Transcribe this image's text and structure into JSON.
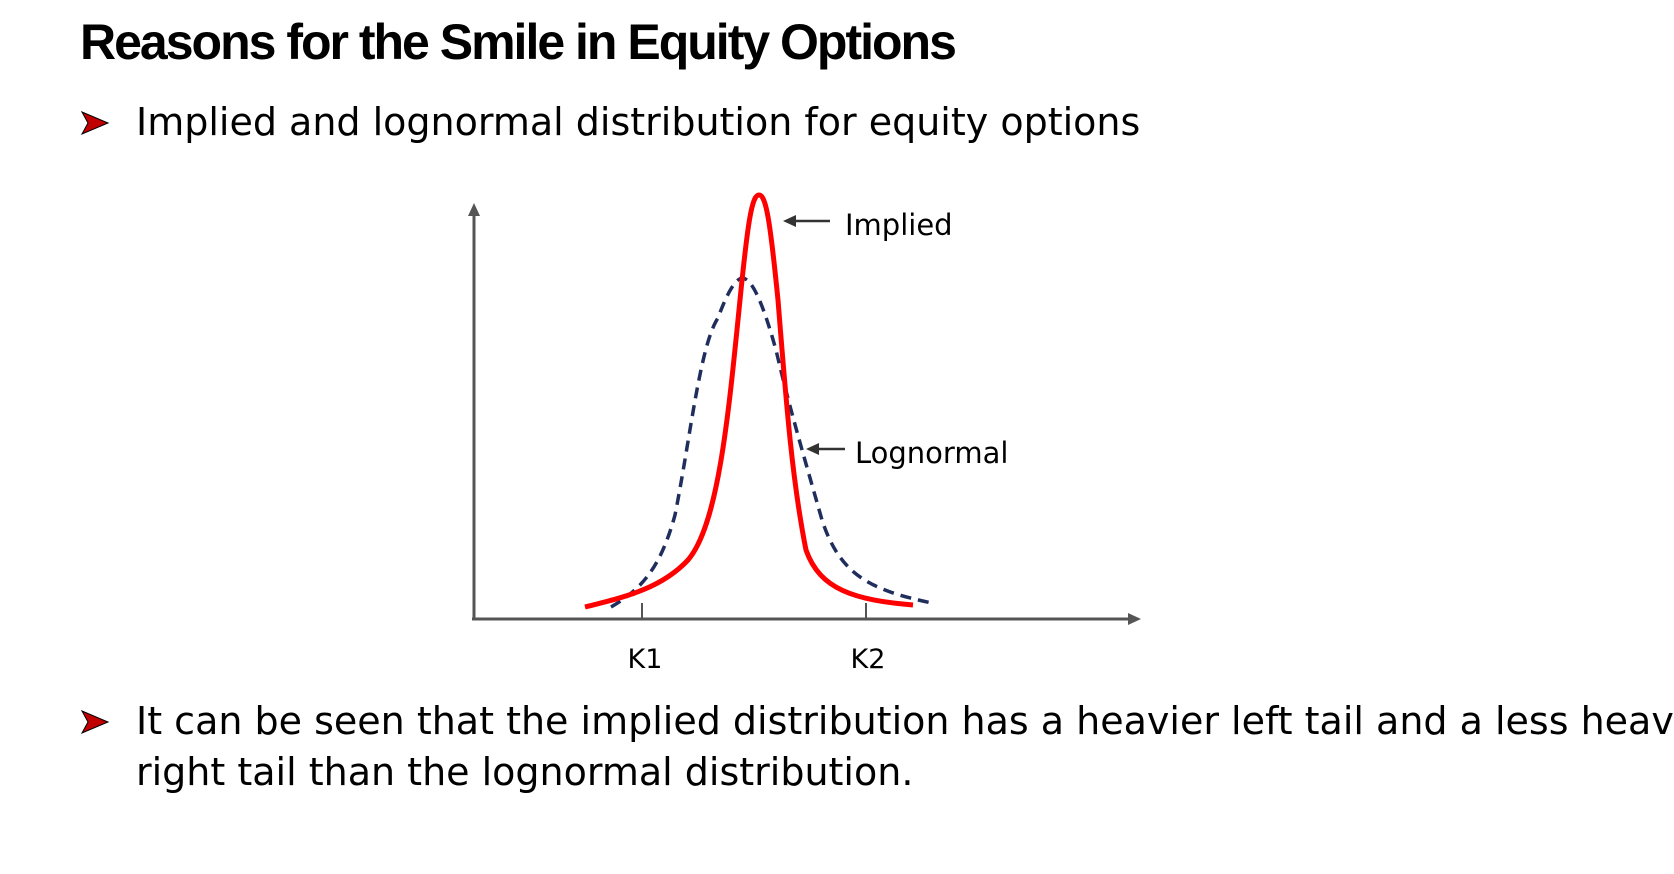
{
  "slide": {
    "title": "Reasons for the Smile in Equity Options",
    "bullets": [
      "Implied and lognormal distribution for equity options",
      "It can be seen that the implied distribution has a heavier left tail and a less heavy",
      "right tail than the lognormal distribution."
    ]
  },
  "chart_data": {
    "type": "line",
    "series": [
      {
        "name": "Implied",
        "style": "solid",
        "color": "#ff0000"
      },
      {
        "name": "Lognormal",
        "style": "dashed",
        "color": "#1f2e5c"
      }
    ],
    "x_ticks": [
      "K1",
      "K2"
    ],
    "xlabel": "",
    "ylabel": "",
    "axis_ticks_numeric": false
  },
  "colors": {
    "bullet_arrow": "#c00000",
    "axis": "#555555"
  },
  "icons": {
    "bullet": "arrowhead-bullet-icon"
  }
}
